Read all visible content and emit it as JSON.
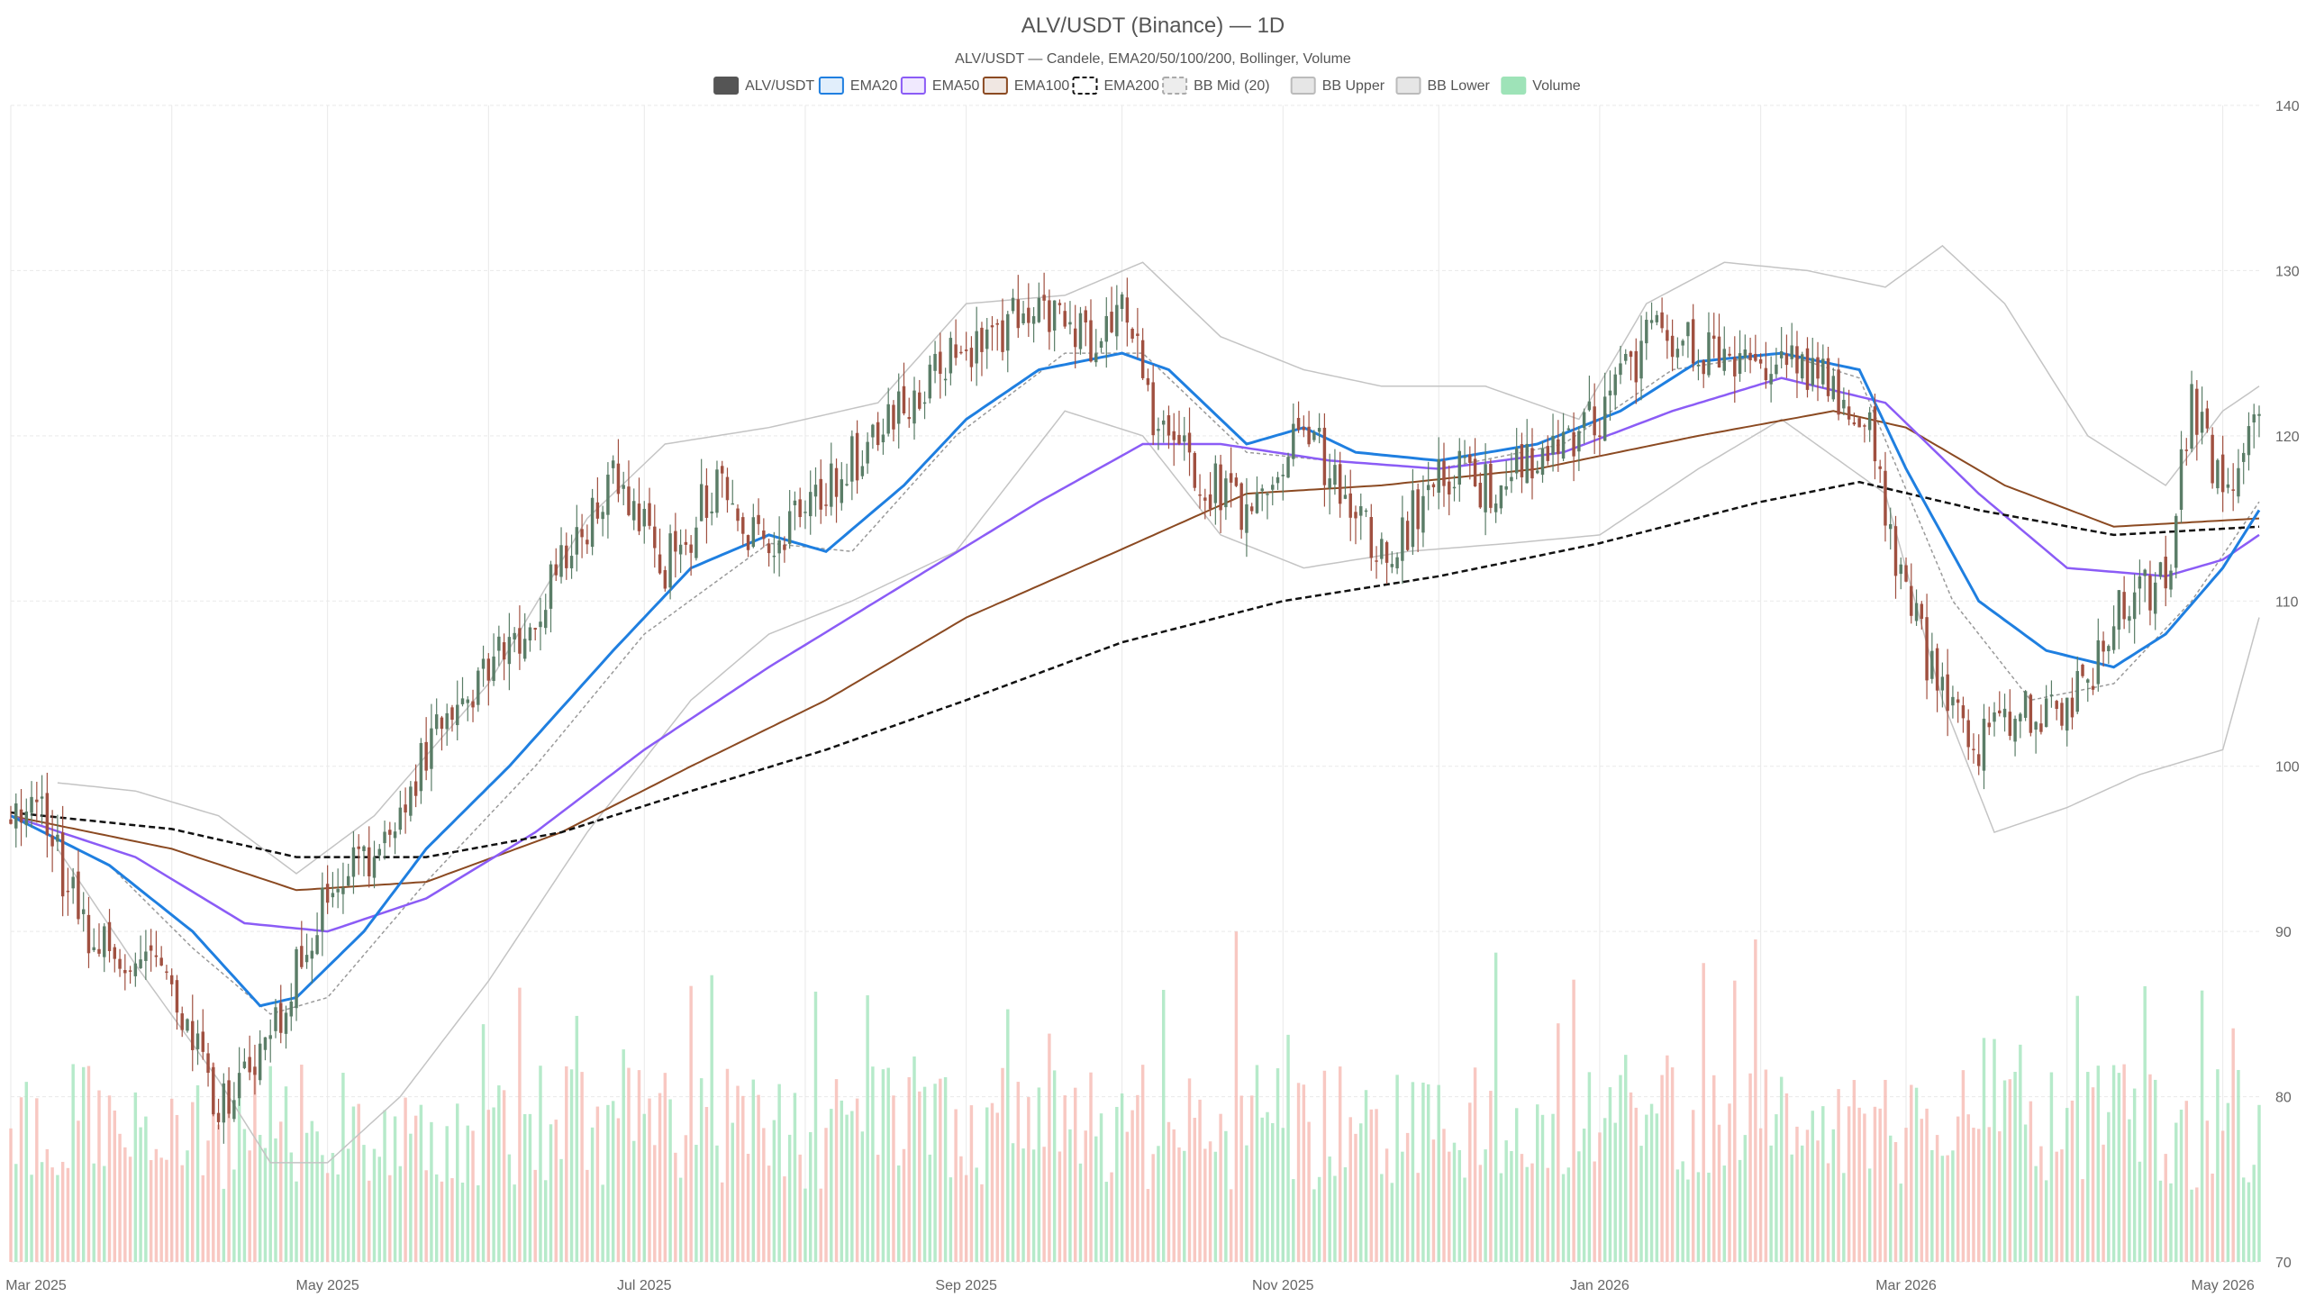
{
  "chart_data": {
    "type": "candlestick",
    "title": "ALV/USDT (Binance) — 1D",
    "subtitle": "ALV/USDT — Candele, EMA20/50/100/200, Bollinger, Volume",
    "legend": [
      {
        "key": "price",
        "label": "ALV/USDT",
        "color": "#555555",
        "style": "box-fill"
      },
      {
        "key": "ema20",
        "label": "EMA20",
        "color": "#1f7fe0",
        "style": "box-outline"
      },
      {
        "key": "ema50",
        "label": "EMA50",
        "color": "#8b5cf6",
        "style": "box-outline"
      },
      {
        "key": "ema100",
        "label": "EMA100",
        "color": "#8b4a22",
        "style": "box-outline"
      },
      {
        "key": "ema200",
        "label": "EMA200",
        "color": "#111111",
        "style": "box-dashed"
      },
      {
        "key": "bbmid",
        "label": "BB Mid (20)",
        "color": "#aaaaaa",
        "style": "box-dashed"
      },
      {
        "key": "bbup",
        "label": "BB Upper",
        "color": "#bbbbbb",
        "style": "box-outline"
      },
      {
        "key": "bblow",
        "label": "BB Lower",
        "color": "#bbbbbb",
        "style": "box-outline"
      },
      {
        "key": "volume",
        "label": "Volume",
        "color": "#9ee3b8",
        "style": "box-fill"
      }
    ],
    "x_ticks": [
      "Mar 2025",
      "May 2025",
      "Jul 2025",
      "Sep 2025",
      "Nov 2025",
      "Jan 2026",
      "Mar 2026",
      "May 2026"
    ],
    "x_range": [
      "2025-03-01",
      "2026-05-08"
    ],
    "y_ticks": [
      70,
      80,
      90,
      100,
      110,
      120,
      130,
      140
    ],
    "ylim": [
      70,
      140
    ],
    "legend_position": "top-center",
    "grid": true,
    "colors": {
      "up": "#5a7d67",
      "down": "#a05040",
      "vol_up": "#9ee3b8",
      "vol_down": "#f5b5ad"
    },
    "price_anchors": [
      [
        "2025-03-01",
        97.0
      ],
      [
        "2025-03-08",
        96.5
      ],
      [
        "2025-03-15",
        90.0
      ],
      [
        "2025-03-22",
        89.0
      ],
      [
        "2025-03-29",
        88.0
      ],
      [
        "2025-04-05",
        84.0
      ],
      [
        "2025-04-10",
        79.0
      ],
      [
        "2025-04-18",
        82.0
      ],
      [
        "2025-04-24",
        87.0
      ],
      [
        "2025-05-01",
        92.0
      ],
      [
        "2025-05-10",
        95.0
      ],
      [
        "2025-05-20",
        101.0
      ],
      [
        "2025-05-28",
        104.0
      ],
      [
        "2025-06-05",
        107.0
      ],
      [
        "2025-06-15",
        112.0
      ],
      [
        "2025-06-25",
        118.0
      ],
      [
        "2025-07-05",
        112.0
      ],
      [
        "2025-07-15",
        117.0
      ],
      [
        "2025-07-25",
        113.0
      ],
      [
        "2025-08-05",
        117.0
      ],
      [
        "2025-08-15",
        120.0
      ],
      [
        "2025-08-25",
        124.0
      ],
      [
        "2025-09-05",
        126.0
      ],
      [
        "2025-09-15",
        128.0
      ],
      [
        "2025-09-25",
        126.0
      ],
      [
        "2025-10-02",
        128.0
      ],
      [
        "2025-10-07",
        121.0
      ],
      [
        "2025-10-15",
        118.0
      ],
      [
        "2025-10-25",
        115.0
      ],
      [
        "2025-11-05",
        121.0
      ],
      [
        "2025-11-15",
        115.0
      ],
      [
        "2025-11-22",
        113.0
      ],
      [
        "2025-12-01",
        118.0
      ],
      [
        "2025-12-10",
        117.0
      ],
      [
        "2025-12-20",
        119.0
      ],
      [
        "2025-12-28",
        120.0
      ],
      [
        "2026-01-05",
        123.0
      ],
      [
        "2026-01-12",
        127.0
      ],
      [
        "2026-01-20",
        125.0
      ],
      [
        "2026-01-28",
        124.0
      ],
      [
        "2026-02-05",
        125.0
      ],
      [
        "2026-02-15",
        123.0
      ],
      [
        "2026-02-22",
        120.0
      ],
      [
        "2026-03-01",
        110.0
      ],
      [
        "2026-03-08",
        104.0
      ],
      [
        "2026-03-14",
        101.0
      ],
      [
        "2026-03-20",
        103.0
      ],
      [
        "2026-03-28",
        103.0
      ],
      [
        "2026-04-05",
        105.0
      ],
      [
        "2026-04-12",
        110.0
      ],
      [
        "2026-04-20",
        111.0
      ],
      [
        "2026-04-25",
        122.0
      ],
      [
        "2026-05-01",
        116.0
      ],
      [
        "2026-05-08",
        121.0
      ]
    ],
    "ema20": [
      [
        "2025-03-01",
        97.0
      ],
      [
        "2025-03-20",
        94.0
      ],
      [
        "2025-04-05",
        90.0
      ],
      [
        "2025-04-18",
        85.5
      ],
      [
        "2025-04-25",
        86.0
      ],
      [
        "2025-05-08",
        90.0
      ],
      [
        "2025-05-20",
        95.0
      ],
      [
        "2025-06-05",
        100.0
      ],
      [
        "2025-06-25",
        107.0
      ],
      [
        "2025-07-10",
        112.0
      ],
      [
        "2025-07-25",
        114.0
      ],
      [
        "2025-08-05",
        113.0
      ],
      [
        "2025-08-20",
        117.0
      ],
      [
        "2025-09-01",
        121.0
      ],
      [
        "2025-09-15",
        124.0
      ],
      [
        "2025-10-01",
        125.0
      ],
      [
        "2025-10-10",
        124.0
      ],
      [
        "2025-10-25",
        119.5
      ],
      [
        "2025-11-05",
        120.5
      ],
      [
        "2025-11-15",
        119.0
      ],
      [
        "2025-12-01",
        118.5
      ],
      [
        "2025-12-20",
        119.5
      ],
      [
        "2026-01-05",
        121.5
      ],
      [
        "2026-01-20",
        124.5
      ],
      [
        "2026-02-05",
        125.0
      ],
      [
        "2026-02-20",
        124.0
      ],
      [
        "2026-03-01",
        118.0
      ],
      [
        "2026-03-15",
        110.0
      ],
      [
        "2026-03-28",
        107.0
      ],
      [
        "2026-04-10",
        106.0
      ],
      [
        "2026-04-20",
        108.0
      ],
      [
        "2026-05-01",
        112.0
      ],
      [
        "2026-05-08",
        115.5
      ]
    ],
    "ema50": [
      [
        "2025-03-01",
        97.0
      ],
      [
        "2025-03-25",
        94.5
      ],
      [
        "2025-04-15",
        90.5
      ],
      [
        "2025-05-01",
        90.0
      ],
      [
        "2025-05-20",
        92.0
      ],
      [
        "2025-06-10",
        96.0
      ],
      [
        "2025-07-01",
        101.0
      ],
      [
        "2025-07-25",
        106.0
      ],
      [
        "2025-08-20",
        111.0
      ],
      [
        "2025-09-15",
        116.0
      ],
      [
        "2025-10-05",
        119.5
      ],
      [
        "2025-10-20",
        119.5
      ],
      [
        "2025-11-10",
        118.5
      ],
      [
        "2025-12-01",
        118.0
      ],
      [
        "2025-12-25",
        119.0
      ],
      [
        "2026-01-15",
        121.5
      ],
      [
        "2026-02-05",
        123.5
      ],
      [
        "2026-02-25",
        122.0
      ],
      [
        "2026-03-15",
        116.5
      ],
      [
        "2026-04-01",
        112.0
      ],
      [
        "2026-04-20",
        111.5
      ],
      [
        "2026-05-01",
        112.5
      ],
      [
        "2026-05-08",
        114.0
      ]
    ],
    "ema100": [
      [
        "2025-03-01",
        97.0
      ],
      [
        "2025-04-01",
        95.0
      ],
      [
        "2025-04-25",
        92.5
      ],
      [
        "2025-05-20",
        93.0
      ],
      [
        "2025-06-15",
        96.0
      ],
      [
        "2025-07-10",
        100.0
      ],
      [
        "2025-08-05",
        104.0
      ],
      [
        "2025-09-01",
        109.0
      ],
      [
        "2025-09-30",
        113.0
      ],
      [
        "2025-10-25",
        116.5
      ],
      [
        "2025-11-20",
        117.0
      ],
      [
        "2025-12-20",
        118.0
      ],
      [
        "2026-01-20",
        120.0
      ],
      [
        "2026-02-15",
        121.5
      ],
      [
        "2026-03-01",
        120.5
      ],
      [
        "2026-03-20",
        117.0
      ],
      [
        "2026-04-10",
        114.5
      ],
      [
        "2026-05-08",
        115.0
      ]
    ],
    "ema200": [
      [
        "2025-03-01",
        97.2
      ],
      [
        "2025-04-01",
        96.2
      ],
      [
        "2025-04-25",
        94.5
      ],
      [
        "2025-05-20",
        94.5
      ],
      [
        "2025-06-15",
        96.0
      ],
      [
        "2025-07-10",
        98.5
      ],
      [
        "2025-08-05",
        101.0
      ],
      [
        "2025-09-01",
        104.0
      ],
      [
        "2025-10-01",
        107.5
      ],
      [
        "2025-11-01",
        110.0
      ],
      [
        "2025-12-01",
        111.5
      ],
      [
        "2026-01-01",
        113.5
      ],
      [
        "2026-02-01",
        116.0
      ],
      [
        "2026-02-20",
        117.2
      ],
      [
        "2026-03-15",
        115.5
      ],
      [
        "2026-04-10",
        114.0
      ],
      [
        "2026-05-08",
        114.5
      ]
    ],
    "bb_mid": [
      [
        "2025-03-01",
        97.0
      ],
      [
        "2025-03-20",
        94.0
      ],
      [
        "2025-04-05",
        89.0
      ],
      [
        "2025-04-20",
        85.0
      ],
      [
        "2025-05-01",
        86.0
      ],
      [
        "2025-05-20",
        93.0
      ],
      [
        "2025-06-10",
        100.0
      ],
      [
        "2025-07-01",
        108.0
      ],
      [
        "2025-07-25",
        113.5
      ],
      [
        "2025-08-10",
        113.0
      ],
      [
        "2025-08-30",
        120.0
      ],
      [
        "2025-09-20",
        125.0
      ],
      [
        "2025-10-05",
        125.0
      ],
      [
        "2025-10-25",
        119.0
      ],
      [
        "2025-11-10",
        118.5
      ],
      [
        "2025-12-01",
        118.0
      ],
      [
        "2025-12-25",
        119.5
      ],
      [
        "2026-01-15",
        124.0
      ],
      [
        "2026-02-05",
        125.0
      ],
      [
        "2026-02-20",
        123.5
      ],
      [
        "2026-03-10",
        110.0
      ],
      [
        "2026-03-25",
        104.0
      ],
      [
        "2026-04-10",
        105.0
      ],
      [
        "2026-04-25",
        110.0
      ],
      [
        "2026-05-08",
        116.0
      ]
    ],
    "bb_upper": [
      [
        "2025-03-10",
        99.0
      ],
      [
        "2025-03-25",
        98.5
      ],
      [
        "2025-04-10",
        97.0
      ],
      [
        "2025-04-25",
        93.5
      ],
      [
        "2025-05-10",
        97.0
      ],
      [
        "2025-06-01",
        105.0
      ],
      [
        "2025-06-20",
        115.0
      ],
      [
        "2025-07-05",
        119.5
      ],
      [
        "2025-07-25",
        120.5
      ],
      [
        "2025-08-15",
        122.0
      ],
      [
        "2025-09-01",
        128.0
      ],
      [
        "2025-09-20",
        128.5
      ],
      [
        "2025-10-05",
        130.5
      ],
      [
        "2025-10-20",
        126.0
      ],
      [
        "2025-11-05",
        124.0
      ],
      [
        "2025-11-20",
        123.0
      ],
      [
        "2025-12-10",
        123.0
      ],
      [
        "2025-12-28",
        121.0
      ],
      [
        "2026-01-10",
        128.0
      ],
      [
        "2026-01-25",
        130.5
      ],
      [
        "2026-02-10",
        130.0
      ],
      [
        "2026-02-25",
        129.0
      ],
      [
        "2026-03-08",
        131.5
      ],
      [
        "2026-03-20",
        128.0
      ],
      [
        "2026-04-05",
        120.0
      ],
      [
        "2026-04-20",
        117.0
      ],
      [
        "2026-05-01",
        121.5
      ],
      [
        "2026-05-08",
        123.0
      ]
    ],
    "bb_lower": [
      [
        "2025-03-10",
        95.0
      ],
      [
        "2025-03-25",
        88.0
      ],
      [
        "2025-04-10",
        81.0
      ],
      [
        "2025-04-20",
        76.0
      ],
      [
        "2025-05-01",
        76.0
      ],
      [
        "2025-05-15",
        80.0
      ],
      [
        "2025-06-01",
        87.0
      ],
      [
        "2025-06-20",
        96.0
      ],
      [
        "2025-07-10",
        104.0
      ],
      [
        "2025-07-25",
        108.0
      ],
      [
        "2025-08-10",
        110.0
      ],
      [
        "2025-08-30",
        113.0
      ],
      [
        "2025-09-20",
        121.5
      ],
      [
        "2025-10-05",
        120.0
      ],
      [
        "2025-10-20",
        114.0
      ],
      [
        "2025-11-05",
        112.0
      ],
      [
        "2025-11-25",
        113.0
      ],
      [
        "2025-12-15",
        113.5
      ],
      [
        "2026-01-01",
        114.0
      ],
      [
        "2026-01-20",
        118.0
      ],
      [
        "2026-02-05",
        121.0
      ],
      [
        "2026-02-25",
        116.5
      ],
      [
        "2026-03-08",
        104.0
      ],
      [
        "2026-03-18",
        96.0
      ],
      [
        "2026-04-01",
        97.5
      ],
      [
        "2026-04-15",
        99.5
      ],
      [
        "2026-05-01",
        101.0
      ],
      [
        "2026-05-08",
        109.0
      ]
    ],
    "volume_note_visible_only": "volume bars shown at bottom, no volume scale printed"
  }
}
